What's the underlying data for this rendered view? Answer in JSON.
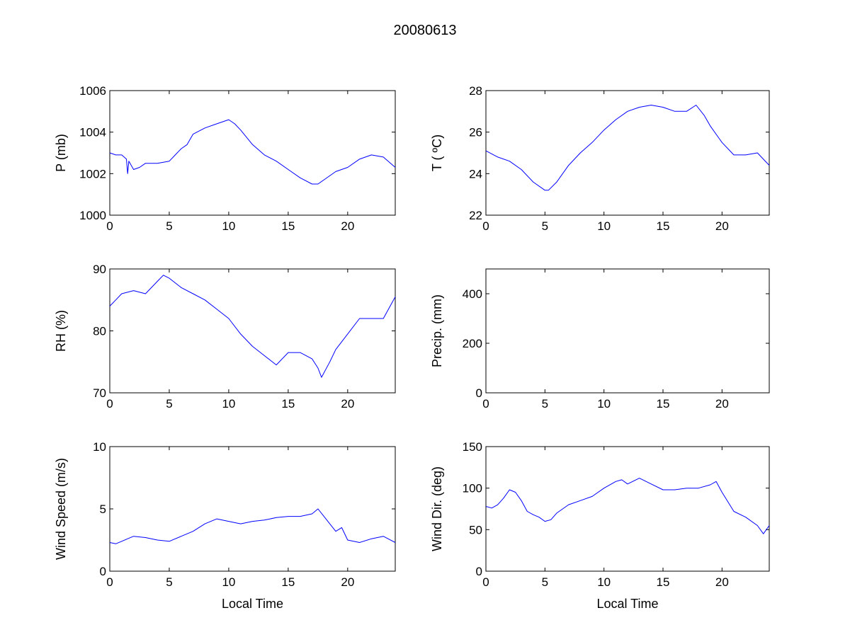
{
  "figure": {
    "title": "20080613"
  },
  "colors": {
    "line": "#0000ff",
    "axes": "#000000",
    "background": "#ffffff"
  },
  "chart_data": [
    {
      "id": "pressure",
      "type": "line",
      "title": "",
      "xlabel": "",
      "ylabel": "P (mb)",
      "xlim": [
        0,
        24
      ],
      "ylim": [
        1000,
        1006
      ],
      "xticks": [
        0,
        5,
        10,
        15,
        20
      ],
      "xticklabels": [
        "0",
        "5",
        "10",
        "15",
        "20"
      ],
      "yticks": [
        1000,
        1002,
        1004,
        1006
      ],
      "yticklabels": [
        "1000",
        "1002",
        "1004",
        "1006"
      ],
      "grid": false,
      "legend": "none",
      "series": [
        {
          "x": [
            0,
            0.5,
            1,
            1.4,
            1.5,
            1.6,
            2,
            2.5,
            3,
            4,
            5,
            5.5,
            6,
            6.5,
            7,
            8,
            9,
            10,
            10.5,
            11,
            12,
            13,
            14,
            15,
            16,
            17,
            17.5,
            18,
            19,
            20,
            21,
            22,
            23,
            24
          ],
          "y": [
            1003,
            1002.9,
            1002.9,
            1002.7,
            1002,
            1002.6,
            1002.2,
            1002.3,
            1002.5,
            1002.5,
            1002.6,
            1002.9,
            1003.2,
            1003.4,
            1003.9,
            1004.2,
            1004.4,
            1004.6,
            1004.4,
            1004.1,
            1003.4,
            1002.9,
            1002.6,
            1002.2,
            1001.8,
            1001.5,
            1001.5,
            1001.7,
            1002.1,
            1002.3,
            1002.7,
            1002.9,
            1002.8,
            1002.3
          ]
        }
      ]
    },
    {
      "id": "temperature",
      "type": "line",
      "title": "",
      "xlabel": "",
      "ylabel": "T ( ºC)",
      "xlim": [
        0,
        24
      ],
      "ylim": [
        22,
        28
      ],
      "xticks": [
        0,
        5,
        10,
        15,
        20
      ],
      "xticklabels": [
        "0",
        "5",
        "10",
        "15",
        "20"
      ],
      "yticks": [
        22,
        24,
        26,
        28
      ],
      "yticklabels": [
        "22",
        "24",
        "26",
        "28"
      ],
      "grid": false,
      "legend": "none",
      "series": [
        {
          "x": [
            0,
            1,
            2,
            3,
            4,
            5,
            5.3,
            6,
            7,
            8,
            9,
            10,
            11,
            12,
            13,
            14,
            15,
            16,
            17,
            17.8,
            18.5,
            19,
            20,
            21,
            22,
            23,
            24
          ],
          "y": [
            25.1,
            24.8,
            24.6,
            24.2,
            23.6,
            23.2,
            23.2,
            23.6,
            24.4,
            25.0,
            25.5,
            26.1,
            26.6,
            27.0,
            27.2,
            27.3,
            27.2,
            27.0,
            27.0,
            27.3,
            26.8,
            26.3,
            25.5,
            24.9,
            24.9,
            25.0,
            24.4
          ]
        }
      ]
    },
    {
      "id": "humidity",
      "type": "line",
      "title": "",
      "xlabel": "",
      "ylabel": "RH (%)",
      "xlim": [
        0,
        24
      ],
      "ylim": [
        70,
        90
      ],
      "xticks": [
        0,
        5,
        10,
        15,
        20
      ],
      "xticklabels": [
        "0",
        "5",
        "10",
        "15",
        "20"
      ],
      "yticks": [
        70,
        80,
        90
      ],
      "yticklabels": [
        "70",
        "80",
        "90"
      ],
      "grid": false,
      "legend": "none",
      "series": [
        {
          "x": [
            0,
            0.5,
            1,
            2,
            3,
            4,
            4.5,
            5,
            6,
            7,
            8,
            9,
            10,
            11,
            12,
            13,
            14,
            15,
            16,
            17,
            17.5,
            17.8,
            18.5,
            19,
            20,
            21,
            22,
            23,
            24
          ],
          "y": [
            84,
            85,
            86,
            86.5,
            86,
            88,
            89,
            88.5,
            87,
            86,
            85,
            83.5,
            82,
            79.5,
            77.5,
            76,
            74.5,
            76.5,
            76.5,
            75.5,
            74,
            72.5,
            75,
            77,
            79.5,
            82,
            82,
            82,
            85.5
          ]
        }
      ]
    },
    {
      "id": "precipitation",
      "type": "line",
      "title": "",
      "xlabel": "",
      "ylabel": "Precip. (mm)",
      "xlim": [
        0,
        24
      ],
      "ylim": [
        0,
        500
      ],
      "xticks": [
        0,
        5,
        10,
        15,
        20
      ],
      "xticklabels": [
        "0",
        "5",
        "10",
        "15",
        "20"
      ],
      "yticks": [
        0,
        200,
        400
      ],
      "yticklabels": [
        "0",
        "200",
        "400"
      ],
      "grid": false,
      "legend": "none",
      "series": [
        {
          "x": [],
          "y": []
        }
      ]
    },
    {
      "id": "wind-speed",
      "type": "line",
      "title": "",
      "xlabel": "Local Time",
      "ylabel": "Wind Speed (m/s)",
      "xlim": [
        0,
        24
      ],
      "ylim": [
        0,
        10
      ],
      "xticks": [
        0,
        5,
        10,
        15,
        20
      ],
      "xticklabels": [
        "0",
        "5",
        "10",
        "15",
        "20"
      ],
      "yticks": [
        0,
        5,
        10
      ],
      "yticklabels": [
        "0",
        "5",
        "10"
      ],
      "grid": false,
      "legend": "none",
      "series": [
        {
          "x": [
            0,
            0.5,
            1,
            1.5,
            2,
            3,
            4,
            5,
            6,
            7,
            8,
            9,
            10,
            11,
            12,
            13,
            14,
            15,
            16,
            17,
            17.5,
            18,
            19,
            19.5,
            20,
            21,
            22,
            23,
            24
          ],
          "y": [
            2.3,
            2.2,
            2.4,
            2.6,
            2.8,
            2.7,
            2.5,
            2.4,
            2.8,
            3.2,
            3.8,
            4.2,
            4.0,
            3.8,
            4.0,
            4.1,
            4.3,
            4.4,
            4.4,
            4.6,
            5.0,
            4.4,
            3.2,
            3.5,
            2.5,
            2.3,
            2.6,
            2.8,
            2.3
          ]
        }
      ]
    },
    {
      "id": "wind-direction",
      "type": "line",
      "title": "",
      "xlabel": "Local Time",
      "ylabel": "Wind Dir. (deg)",
      "xlim": [
        0,
        24
      ],
      "ylim": [
        0,
        150
      ],
      "xticks": [
        0,
        5,
        10,
        15,
        20
      ],
      "xticklabels": [
        "0",
        "5",
        "10",
        "15",
        "20"
      ],
      "yticks": [
        0,
        50,
        100,
        150
      ],
      "yticklabels": [
        "0",
        "50",
        "100",
        "150"
      ],
      "grid": false,
      "legend": "none",
      "series": [
        {
          "x": [
            0,
            0.5,
            1,
            1.5,
            2,
            2.5,
            3,
            3.5,
            4,
            4.5,
            5,
            5.5,
            6,
            7,
            8,
            9,
            10,
            11,
            11.5,
            12,
            13,
            14,
            15,
            16,
            17,
            18,
            19,
            19.5,
            20,
            21,
            22,
            23,
            23.5,
            24
          ],
          "y": [
            78,
            76,
            80,
            88,
            98,
            95,
            85,
            72,
            68,
            65,
            60,
            62,
            70,
            80,
            85,
            90,
            100,
            108,
            110,
            105,
            112,
            105,
            98,
            98,
            100,
            100,
            104,
            108,
            95,
            72,
            65,
            55,
            45,
            55
          ]
        }
      ]
    }
  ]
}
